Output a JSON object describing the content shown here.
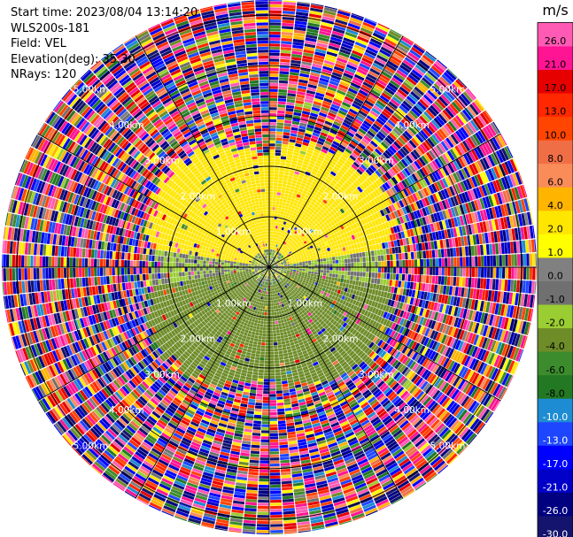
{
  "header": {
    "start_time": "Start time: 2023/08/04 13:14:20",
    "instrument": "WLS200s-181",
    "field": "Field: VEL",
    "elevation": "Elevation(deg): 35.30",
    "nrays": "NRays: 120"
  },
  "colorbar": {
    "unit": "m/s",
    "boundaries": [
      -30,
      -26,
      -21,
      -17,
      -13,
      -10,
      -8,
      -6,
      -4,
      -2,
      -1,
      0,
      1,
      2,
      4,
      6,
      8,
      10,
      13,
      17,
      21,
      26,
      30
    ],
    "tick_labels": [
      "-30.0",
      "-26.0",
      "-21.0",
      "-17.0",
      "-13.0",
      "-10.0",
      "-8.0",
      "-6.0",
      "-4.0",
      "-2.0",
      "-1.0",
      "0.0",
      "1.0",
      "2.0",
      "4.0",
      "6.0",
      "8.0",
      "10.0",
      "13.0",
      "17.0",
      "21.0",
      "26.0"
    ],
    "colors": [
      "#14146e",
      "#000080",
      "#0000c8",
      "#0000ff",
      "#1e46ff",
      "#1e8cd2",
      "#237823",
      "#3c8c2d",
      "#6e8c28",
      "#9acd32",
      "#707070",
      "#808080",
      "#ffff00",
      "#ffe600",
      "#ffb400",
      "#fa8c5a",
      "#f06e46",
      "#ff4500",
      "#ff2800",
      "#e60000",
      "#ff1493",
      "#ff5ab4"
    ]
  },
  "chart_data": {
    "type": "ppi",
    "field": "VEL",
    "nrays": 120,
    "ring_labels": [
      "1.00km",
      "2.00km",
      "3.00km",
      "4.00km",
      "5.00km"
    ],
    "range_rings_km": [
      1,
      2,
      3,
      4,
      5
    ],
    "max_range_km": 5.3,
    "azimuth_spokes_deg": [
      0,
      30,
      60,
      90,
      120,
      150,
      180,
      210,
      240,
      270,
      300,
      330
    ],
    "inner_region_mean_velocity": [
      {
        "range_km": [
          0.0,
          0.35
        ],
        "values": "mixed green/gray/yellow"
      },
      {
        "range_km": [
          0.35,
          2.4
        ],
        "north": 2.0,
        "south": -3.0,
        "east": -1.0,
        "west": -1.0
      },
      {
        "range_km": [
          2.4,
          5.3
        ],
        "values": "noise"
      }
    ]
  }
}
